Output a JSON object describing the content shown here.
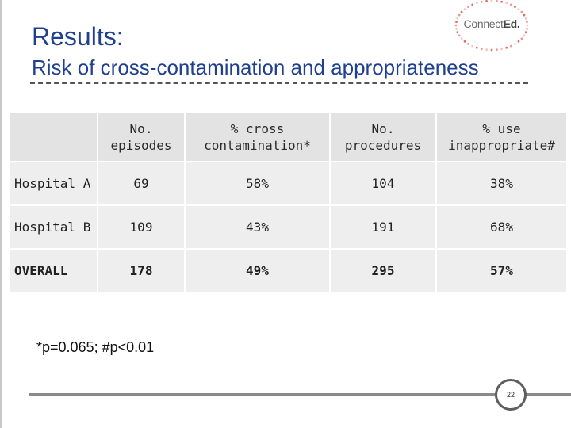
{
  "slide": {
    "title": "Results:",
    "subtitle": "Risk of cross-contamination and appropriateness"
  },
  "logo": {
    "text_regular": "Connect",
    "text_bold": "Ed."
  },
  "table": {
    "headers": [
      "",
      "No. episodes",
      "% cross contamination*",
      "No. procedures",
      "% use inappropriate#"
    ],
    "rows": [
      {
        "label": "Hospital A",
        "episodes": "69",
        "cross": "58%",
        "procedures": "104",
        "inappropriate": "38%"
      },
      {
        "label": "Hospital B",
        "episodes": "109",
        "cross": "43%",
        "procedures": "191",
        "inappropriate": "68%"
      },
      {
        "label": "OVERALL",
        "episodes": "178",
        "cross": "49%",
        "procedures": "295",
        "inappropriate": "57%"
      }
    ]
  },
  "footnote": "*p=0.065; #p<0.01",
  "page_number": "22",
  "colors": {
    "title": "#1f3f8f",
    "header_cell": "#e3e3e3",
    "body_cell": "#eeeeee",
    "logo_dots": "#d9534f"
  }
}
